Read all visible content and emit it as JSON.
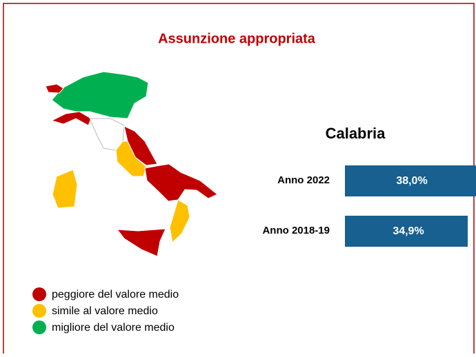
{
  "title": "Assunzione appropriata",
  "region": "Calabria",
  "rows": [
    {
      "label": "Anno 2022",
      "value": "38,0%"
    },
    {
      "label": "Anno 2018-19",
      "value": "34,9%"
    }
  ],
  "legend": [
    "peggiore del valore medio",
    "simile al valore medio",
    "migliore del valore medio"
  ]
}
